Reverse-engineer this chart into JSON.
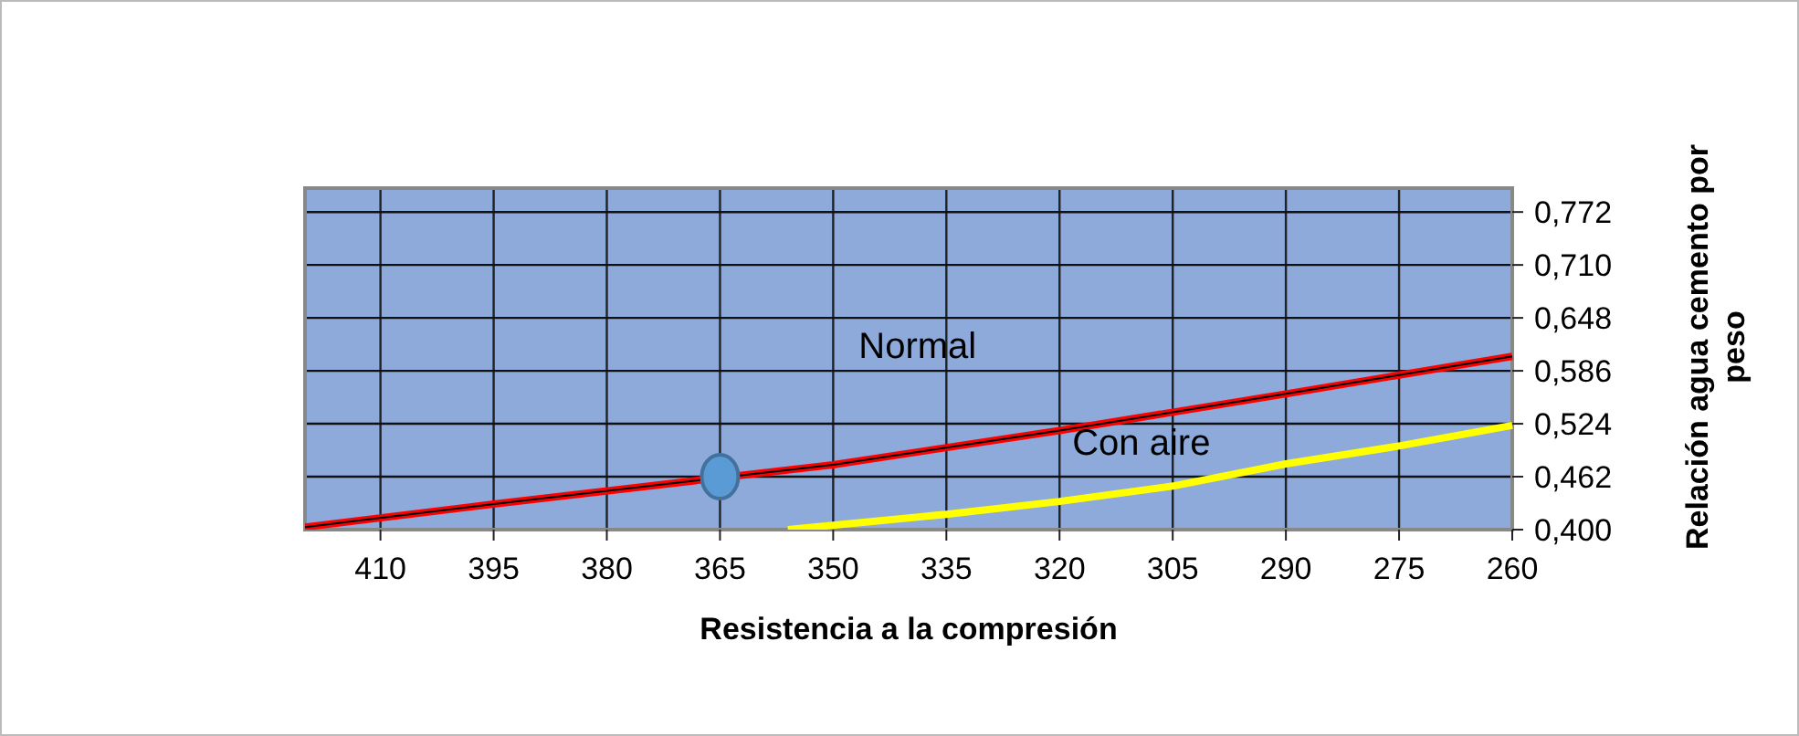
{
  "chart_data": {
    "type": "line",
    "xlabel": "Resistencia a la compresión",
    "ylabel": "Relación agua cemento por peso",
    "xlim": [
      420,
      260
    ],
    "xticks": [
      410,
      395,
      380,
      365,
      350,
      335,
      320,
      305,
      290,
      275,
      260
    ],
    "ylim": [
      0.4,
      0.8
    ],
    "yticks": [
      {
        "value": 0.4,
        "label": "0,400"
      },
      {
        "value": 0.462,
        "label": "0,462"
      },
      {
        "value": 0.524,
        "label": "0,524"
      },
      {
        "value": 0.586,
        "label": "0,586"
      },
      {
        "value": 0.648,
        "label": "0,648"
      },
      {
        "value": 0.71,
        "label": "0,710"
      },
      {
        "value": 0.772,
        "label": "0,772"
      }
    ],
    "grid": true,
    "series": [
      {
        "name": "Normal",
        "color": "#ff0000",
        "x": [
          420,
          395,
          350,
          320,
          290,
          275,
          260
        ],
        "values": [
          0.403,
          0.43,
          0.476,
          0.516,
          0.559,
          0.581,
          0.603
        ]
      },
      {
        "name": "Con aire",
        "color": "#ffff00",
        "x": [
          356,
          335,
          320,
          305,
          290,
          275,
          260
        ],
        "values": [
          0.4,
          0.418,
          0.433,
          0.451,
          0.477,
          0.498,
          0.522
        ]
      },
      {
        "type": "scatter",
        "color": "#5b9bd5",
        "marker": "circle",
        "x": [
          365
        ],
        "values": [
          0.462
        ]
      }
    ]
  }
}
